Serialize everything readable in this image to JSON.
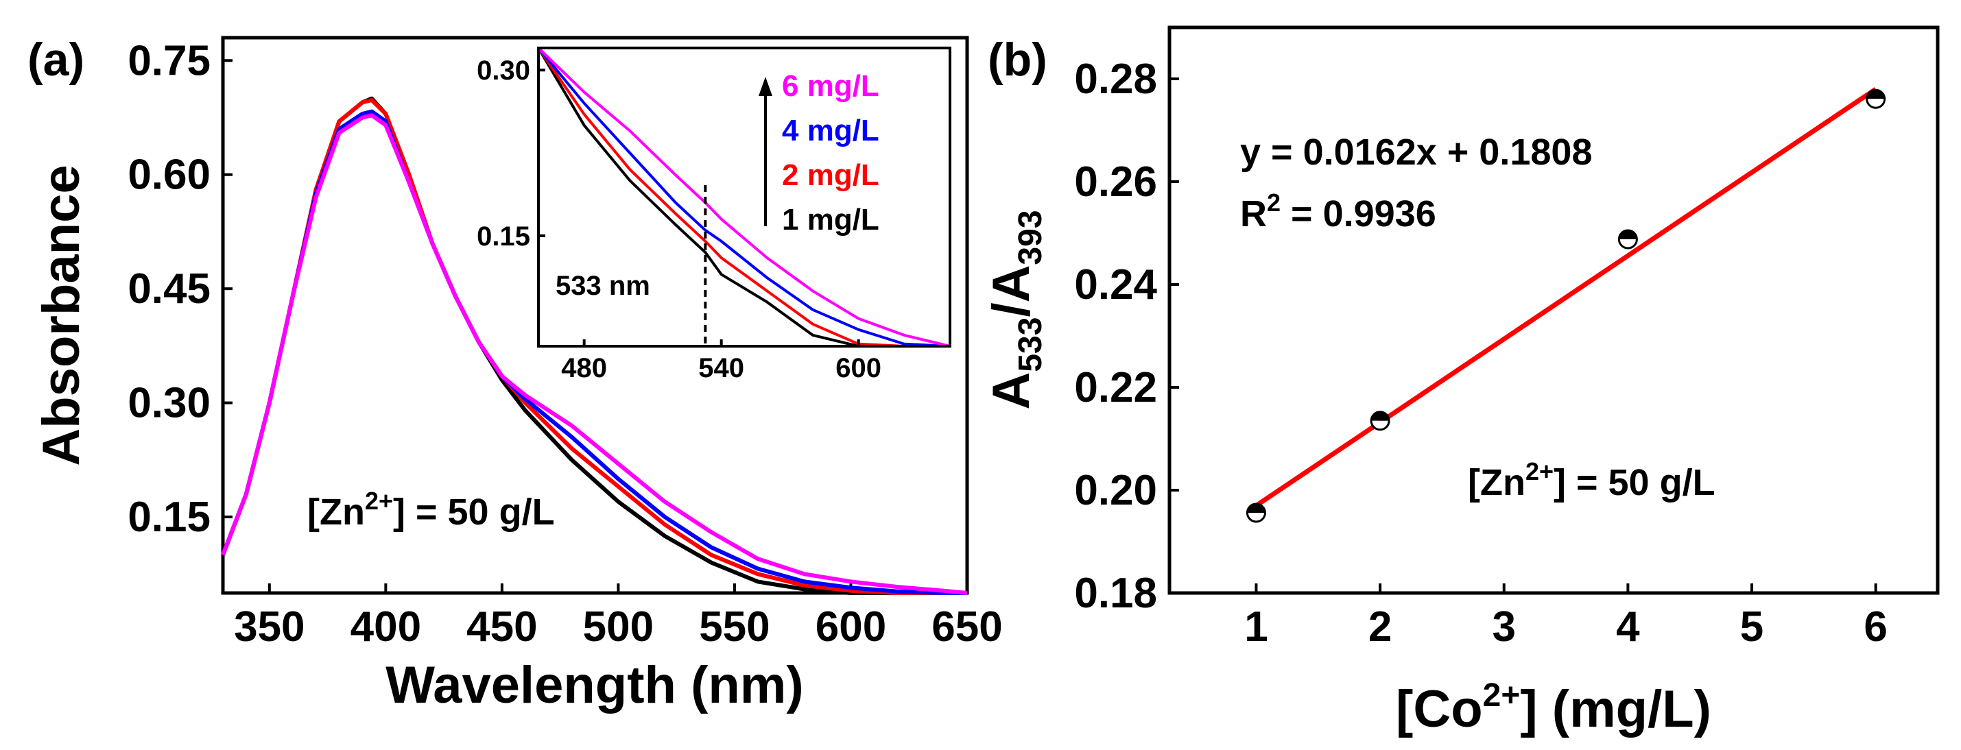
{
  "chart_data": [
    {
      "panel": "(a)",
      "type": "line",
      "xlabel": "Wavelength (nm)",
      "ylabel": "Absorbance",
      "xlim": [
        330,
        650
      ],
      "ylim": [
        0.05,
        0.78
      ],
      "xticks": [
        350,
        400,
        450,
        500,
        550,
        600,
        650
      ],
      "xtick_labels": [
        "350",
        "400",
        "450",
        "500",
        "550",
        "600",
        "650"
      ],
      "yticks": [
        0.15,
        0.3,
        0.45,
        0.6,
        0.75
      ],
      "ytick_labels": [
        "0.15",
        "0.30",
        "0.45",
        "0.60",
        "0.75"
      ],
      "annotation": {
        "pre": "[Zn",
        "sup": "2+",
        "post": "] = 50 g/L"
      },
      "x": [
        330,
        340,
        350,
        360,
        370,
        380,
        390,
        394,
        400,
        410,
        420,
        430,
        440,
        450,
        460,
        480,
        500,
        520,
        540,
        560,
        580,
        600,
        620,
        640,
        650
      ],
      "series": [
        {
          "name": "1 mg/L",
          "color": "#000000",
          "values": [
            0.1,
            0.18,
            0.3,
            0.44,
            0.58,
            0.67,
            0.695,
            0.7,
            0.68,
            0.6,
            0.51,
            0.44,
            0.38,
            0.33,
            0.29,
            0.225,
            0.17,
            0.125,
            0.09,
            0.065,
            0.055,
            0.05,
            0.05,
            0.05,
            0.05
          ]
        },
        {
          "name": "2 mg/L",
          "color": "#ff0000",
          "values": [
            0.1,
            0.18,
            0.3,
            0.44,
            0.58,
            0.67,
            0.695,
            0.698,
            0.68,
            0.6,
            0.51,
            0.44,
            0.38,
            0.335,
            0.3,
            0.24,
            0.19,
            0.14,
            0.1,
            0.075,
            0.06,
            0.053,
            0.05,
            0.05,
            0.05
          ]
        },
        {
          "name": "4 mg/L",
          "color": "#0000ff",
          "values": [
            0.1,
            0.18,
            0.3,
            0.44,
            0.575,
            0.66,
            0.68,
            0.683,
            0.67,
            0.59,
            0.51,
            0.44,
            0.38,
            0.335,
            0.305,
            0.255,
            0.2,
            0.15,
            0.11,
            0.082,
            0.065,
            0.057,
            0.052,
            0.05,
            0.05
          ]
        },
        {
          "name": "6 mg/L",
          "color": "#ff00ff",
          "values": [
            0.1,
            0.18,
            0.3,
            0.44,
            0.57,
            0.655,
            0.675,
            0.678,
            0.665,
            0.59,
            0.51,
            0.44,
            0.38,
            0.335,
            0.31,
            0.27,
            0.22,
            0.17,
            0.13,
            0.095,
            0.075,
            0.065,
            0.058,
            0.053,
            0.05
          ]
        }
      ],
      "inset": {
        "type": "line",
        "xlim": [
          460,
          640
        ],
        "ylim": [
          0.05,
          0.32
        ],
        "xticks": [
          480,
          540,
          600
        ],
        "xtick_labels": [
          "480",
          "540",
          "600"
        ],
        "yticks": [
          0.15,
          0.3
        ],
        "ytick_labels": [
          "0.15",
          "0.30"
        ],
        "marker_line_x": 533,
        "marker_label": "533 nm",
        "x": [
          460,
          480,
          500,
          520,
          533,
          540,
          560,
          580,
          600,
          620,
          640
        ],
        "legend_order": [
          "6 mg/L",
          "4 mg/L",
          "2 mg/L",
          "1 mg/L"
        ],
        "series": [
          {
            "name": "1 mg/L",
            "color": "#000000",
            "values": [
              0.32,
              0.25,
              0.2,
              0.16,
              0.135,
              0.115,
              0.09,
              0.06,
              0.05,
              0.05,
              0.05
            ]
          },
          {
            "name": "2 mg/L",
            "color": "#ff0000",
            "values": [
              0.32,
              0.26,
              0.21,
              0.17,
              0.145,
              0.13,
              0.1,
              0.07,
              0.052,
              0.05,
              0.05
            ]
          },
          {
            "name": "4 mg/L",
            "color": "#0000ff",
            "values": [
              0.32,
              0.27,
              0.225,
              0.18,
              0.155,
              0.145,
              0.112,
              0.083,
              0.065,
              0.052,
              0.05
            ]
          },
          {
            "name": "6 mg/L",
            "color": "#ff00ff",
            "values": [
              0.32,
              0.28,
              0.245,
              0.205,
              0.18,
              0.165,
              0.13,
              0.1,
              0.075,
              0.06,
              0.05
            ]
          }
        ]
      }
    },
    {
      "panel": "(b)",
      "type": "scatter",
      "xlabel": {
        "pre": "[Co",
        "sup": "2+",
        "post": "] (mg/L)"
      },
      "ylabel": {
        "a": "A",
        "sub1": "533",
        "slash": "/A",
        "sub2": "393"
      },
      "xlim": [
        0.3,
        6.5
      ],
      "ylim": [
        0.18,
        0.29
      ],
      "xticks": [
        1,
        2,
        3,
        4,
        5,
        6
      ],
      "xtick_labels": [
        "1",
        "2",
        "3",
        "4",
        "5",
        "6"
      ],
      "yticks": [
        0.18,
        0.2,
        0.22,
        0.24,
        0.26,
        0.28
      ],
      "ytick_labels": [
        "0.18",
        "0.20",
        "0.22",
        "0.24",
        "0.26",
        "0.28"
      ],
      "x": [
        1,
        2,
        4,
        6
      ],
      "values": [
        0.1956,
        0.2135,
        0.2488,
        0.2761
      ],
      "fit": {
        "slope": 0.0162,
        "intercept": 0.1808,
        "color": "#ff0000",
        "x_range": [
          1,
          6
        ]
      },
      "equation": "y = 0.0162x + 0.1808",
      "r2": {
        "pre": "R",
        "sup": "2",
        "post": " = 0.9936"
      },
      "annotation": {
        "pre": "[Zn",
        "sup": "2+",
        "post": "] = 50 g/L"
      }
    }
  ]
}
